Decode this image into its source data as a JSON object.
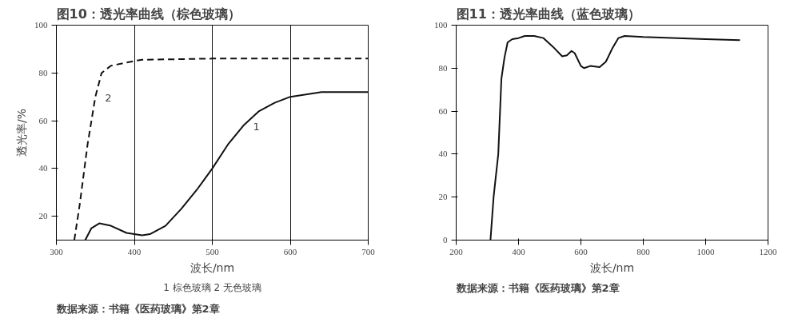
{
  "chart_data": [
    {
      "type": "line",
      "title": "图10：透光率曲线（棕色玻璃）",
      "xlabel": "波长/nm",
      "ylabel": "透光率/%",
      "xlim": [
        300,
        700
      ],
      "ylim": [
        10,
        100
      ],
      "xticks": [
        300,
        400,
        500,
        600,
        700
      ],
      "yticks": [
        20,
        40,
        60,
        80,
        100
      ],
      "grid": "x",
      "series": [
        {
          "name": "1",
          "color": "#111111",
          "line_style": "solid",
          "x": [
            337,
            345,
            355,
            370,
            390,
            410,
            420,
            440,
            460,
            480,
            500,
            520,
            540,
            560,
            580,
            600,
            640,
            700
          ],
          "values": [
            10,
            15,
            17,
            16,
            13,
            12,
            12.5,
            16,
            23,
            31,
            40,
            50,
            58,
            64,
            67.5,
            70,
            72,
            72
          ]
        },
        {
          "name": "2",
          "color": "#111111",
          "line_style": "dashed",
          "x": [
            323,
            330,
            340,
            350,
            358,
            370,
            400,
            410,
            500,
            600,
            700
          ],
          "values": [
            10,
            25,
            50,
            70,
            80,
            83,
            85,
            85.5,
            86,
            86,
            86
          ]
        }
      ],
      "annotations": [
        "1 棕色玻璃 2 无色玻璃",
        "数据来源：书籍《医药玻璃》第2章"
      ]
    },
    {
      "type": "line",
      "title": "图11：透光率曲线（蓝色玻璃）",
      "xlabel": "波长/nm",
      "xlim": [
        200,
        1200
      ],
      "ylim": [
        0,
        100
      ],
      "xticks": [
        200,
        400,
        600,
        800,
        1000,
        1200
      ],
      "yticks": [
        0,
        20,
        40,
        60,
        80,
        100
      ],
      "grid": false,
      "series": [
        {
          "color": "#111111",
          "line_style": "solid",
          "x": [
            310,
            320,
            335,
            345,
            355,
            365,
            380,
            400,
            420,
            450,
            480,
            510,
            540,
            555,
            570,
            580,
            600,
            610,
            630,
            660,
            680,
            700,
            720,
            740,
            800,
            1000,
            1110
          ],
          "values": [
            0,
            20,
            40,
            75,
            85,
            92,
            93.5,
            94,
            95,
            95,
            94,
            90,
            85.5,
            86,
            88,
            87,
            81,
            80,
            81,
            80.5,
            83,
            89,
            94,
            95,
            94.5,
            93.5,
            93
          ]
        }
      ],
      "annotations": [
        "数据来源：书籍《医药玻璃》第2章"
      ]
    }
  ]
}
